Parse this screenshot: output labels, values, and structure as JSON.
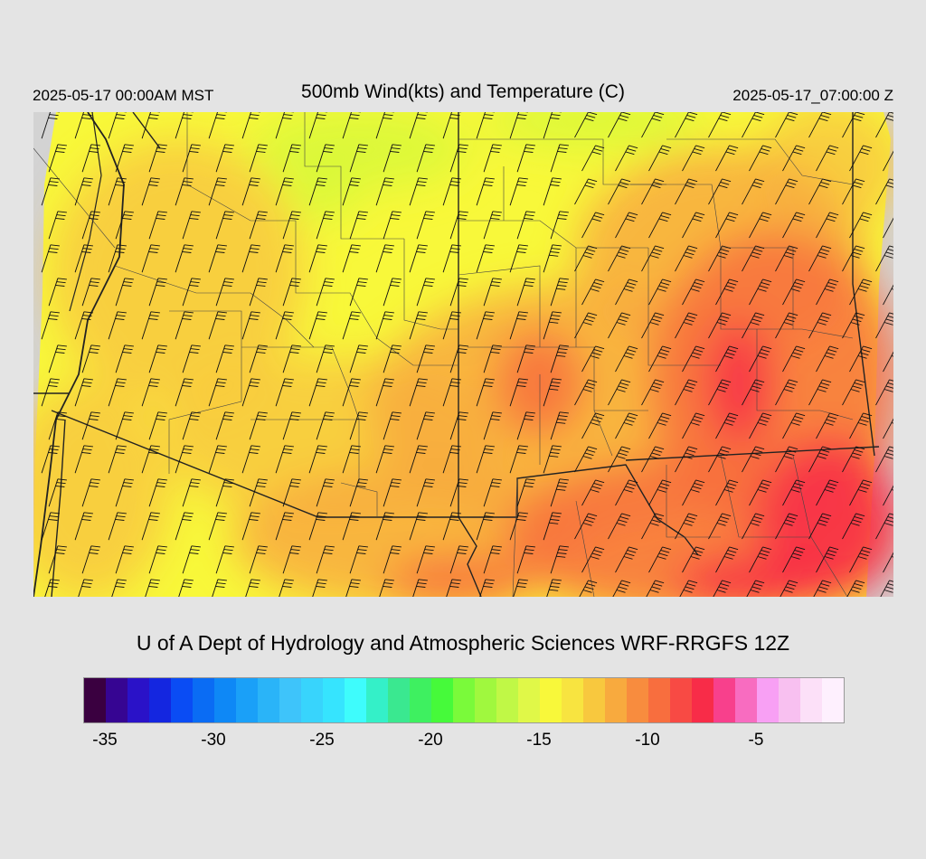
{
  "header": {
    "valid_local": "2025-05-17 00:00AM MST",
    "title": "500mb Wind(kts) and Temperature (C)",
    "valid_utc": "2025-05-17_07:00:00 Z"
  },
  "footer": {
    "credit": "U of A Dept of Hydrology and Atmospheric Sciences WRF-RRGFS 12Z"
  },
  "colorbar": {
    "colors": [
      "#3a0040",
      "#360592",
      "#2a12c8",
      "#1426e0",
      "#0a4cf4",
      "#0a6cf4",
      "#0e88f6",
      "#1aa0f8",
      "#2ab4f8",
      "#3ec4fa",
      "#38d4fc",
      "#36e4fe",
      "#3efcfc",
      "#34f0c8",
      "#3ae890",
      "#3ef060",
      "#46fa3a",
      "#7afa3a",
      "#a0f83e",
      "#c0f846",
      "#e0f848",
      "#f8f83a",
      "#f8e440",
      "#f8c83e",
      "#f8aa3e",
      "#f88c3e",
      "#f86e3e",
      "#f84a44",
      "#f82c48",
      "#f8408c",
      "#f86cc0",
      "#f8a0f4",
      "#f8c0f0",
      "#fce0f8",
      "#fef0fe"
    ],
    "tick_labels": [
      "-35",
      "-30",
      "-25",
      "-20",
      "-15",
      "-10",
      "-5"
    ],
    "tick_values": [
      -35,
      -30,
      -25,
      -20,
      -15,
      -10,
      -5
    ],
    "min": -36,
    "max": -1
  },
  "map": {
    "field": "500mb temperature (C) with wind barbs (kts)",
    "palette": {
      "cool": "#d8f83a",
      "base": "#f8f83a",
      "mid": "#f8c83e",
      "warm": "#f8aa3e",
      "hot": "#f86e3e",
      "hottest": "#f82c48",
      "nodata": "#d3d3d3"
    }
  }
}
